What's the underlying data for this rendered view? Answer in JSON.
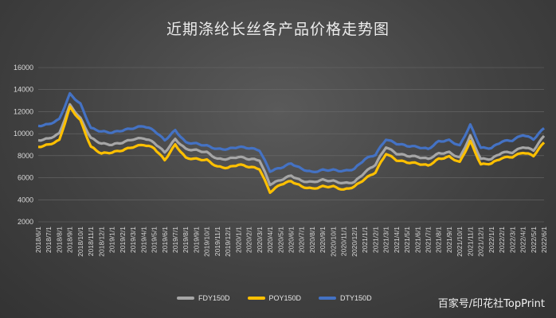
{
  "chart_data": {
    "type": "line",
    "title": "近期涤纶长丝各产品价格走势图",
    "xlabel": "",
    "ylabel": "",
    "ylim": [
      2000,
      16000
    ],
    "yticks": [
      2000,
      4000,
      6000,
      8000,
      10000,
      12000,
      14000,
      16000
    ],
    "grid": true,
    "legend_position": "bottom",
    "x": [
      "2018/6/1",
      "2018/7/1",
      "2018/8/1",
      "2018/9/1",
      "2018/10/1",
      "2018/11/1",
      "2018/12/1",
      "2019/1/1",
      "2019/2/1",
      "2019/3/1",
      "2019/4/1",
      "2019/5/1",
      "2019/6/1",
      "2019/7/1",
      "2019/8/1",
      "2019/9/1",
      "2019/10/1",
      "2019/11/1",
      "2019/12/1",
      "2020/1/1",
      "2020/2/1",
      "2020/3/1",
      "2020/4/1",
      "2020/5/1",
      "2020/6/1",
      "2020/7/1",
      "2020/8/1",
      "2020/9/1",
      "2020/10/1",
      "2020/11/1",
      "2020/12/1",
      "2021/1/1",
      "2021/2/1",
      "2021/3/1",
      "2021/4/1",
      "2021/5/1",
      "2021/6/1",
      "2021/7/1",
      "2021/8/1",
      "2021/9/1",
      "2021/10/1",
      "2021/11/1",
      "2021/12/1",
      "2022/1/1",
      "2022/2/1",
      "2022/3/1",
      "2022/4/1",
      "2022/5/1",
      "2022/6/1"
    ],
    "series": [
      {
        "name": "FDY150D",
        "color": "#a6a6a6",
        "values": [
          9400,
          9550,
          10000,
          12600,
          11400,
          9600,
          9100,
          9000,
          9200,
          9500,
          9600,
          9200,
          8300,
          9500,
          8600,
          8500,
          8300,
          7700,
          7700,
          7900,
          7700,
          7600,
          5400,
          5800,
          6200,
          5700,
          5600,
          5800,
          5700,
          5500,
          5600,
          6500,
          7200,
          8800,
          8200,
          8000,
          7900,
          7700,
          8200,
          8300,
          7800,
          9800,
          7700,
          7700,
          8300,
          8300,
          8800,
          8500,
          9800
        ]
      },
      {
        "name": "POY150D",
        "color": "#ffc000",
        "values": [
          8800,
          9000,
          9400,
          12400,
          11200,
          8800,
          8200,
          8300,
          8500,
          8800,
          9000,
          8700,
          7600,
          9000,
          7800,
          7700,
          7600,
          7000,
          6900,
          7200,
          7000,
          6800,
          4700,
          5400,
          5700,
          5200,
          5000,
          5200,
          5200,
          4900,
          5200,
          5900,
          6500,
          8200,
          7600,
          7400,
          7300,
          7100,
          7700,
          7900,
          7400,
          9300,
          7200,
          7300,
          7800,
          7900,
          8300,
          8000,
          9200
        ]
      },
      {
        "name": "DTY150D",
        "color": "#4472c4",
        "values": [
          10700,
          10850,
          11300,
          13600,
          12700,
          10500,
          10200,
          10100,
          10300,
          10500,
          10700,
          10300,
          9400,
          10300,
          9200,
          9100,
          8900,
          8600,
          8600,
          8800,
          8700,
          8500,
          6600,
          6900,
          7300,
          6800,
          6500,
          6700,
          6700,
          6600,
          6800,
          7700,
          8100,
          9500,
          9100,
          8900,
          8800,
          8600,
          9300,
          9400,
          8900,
          10800,
          8700,
          8700,
          9300,
          9400,
          9900,
          9500,
          10500
        ]
      }
    ]
  },
  "watermark": "百家号/印花社TopPrint"
}
